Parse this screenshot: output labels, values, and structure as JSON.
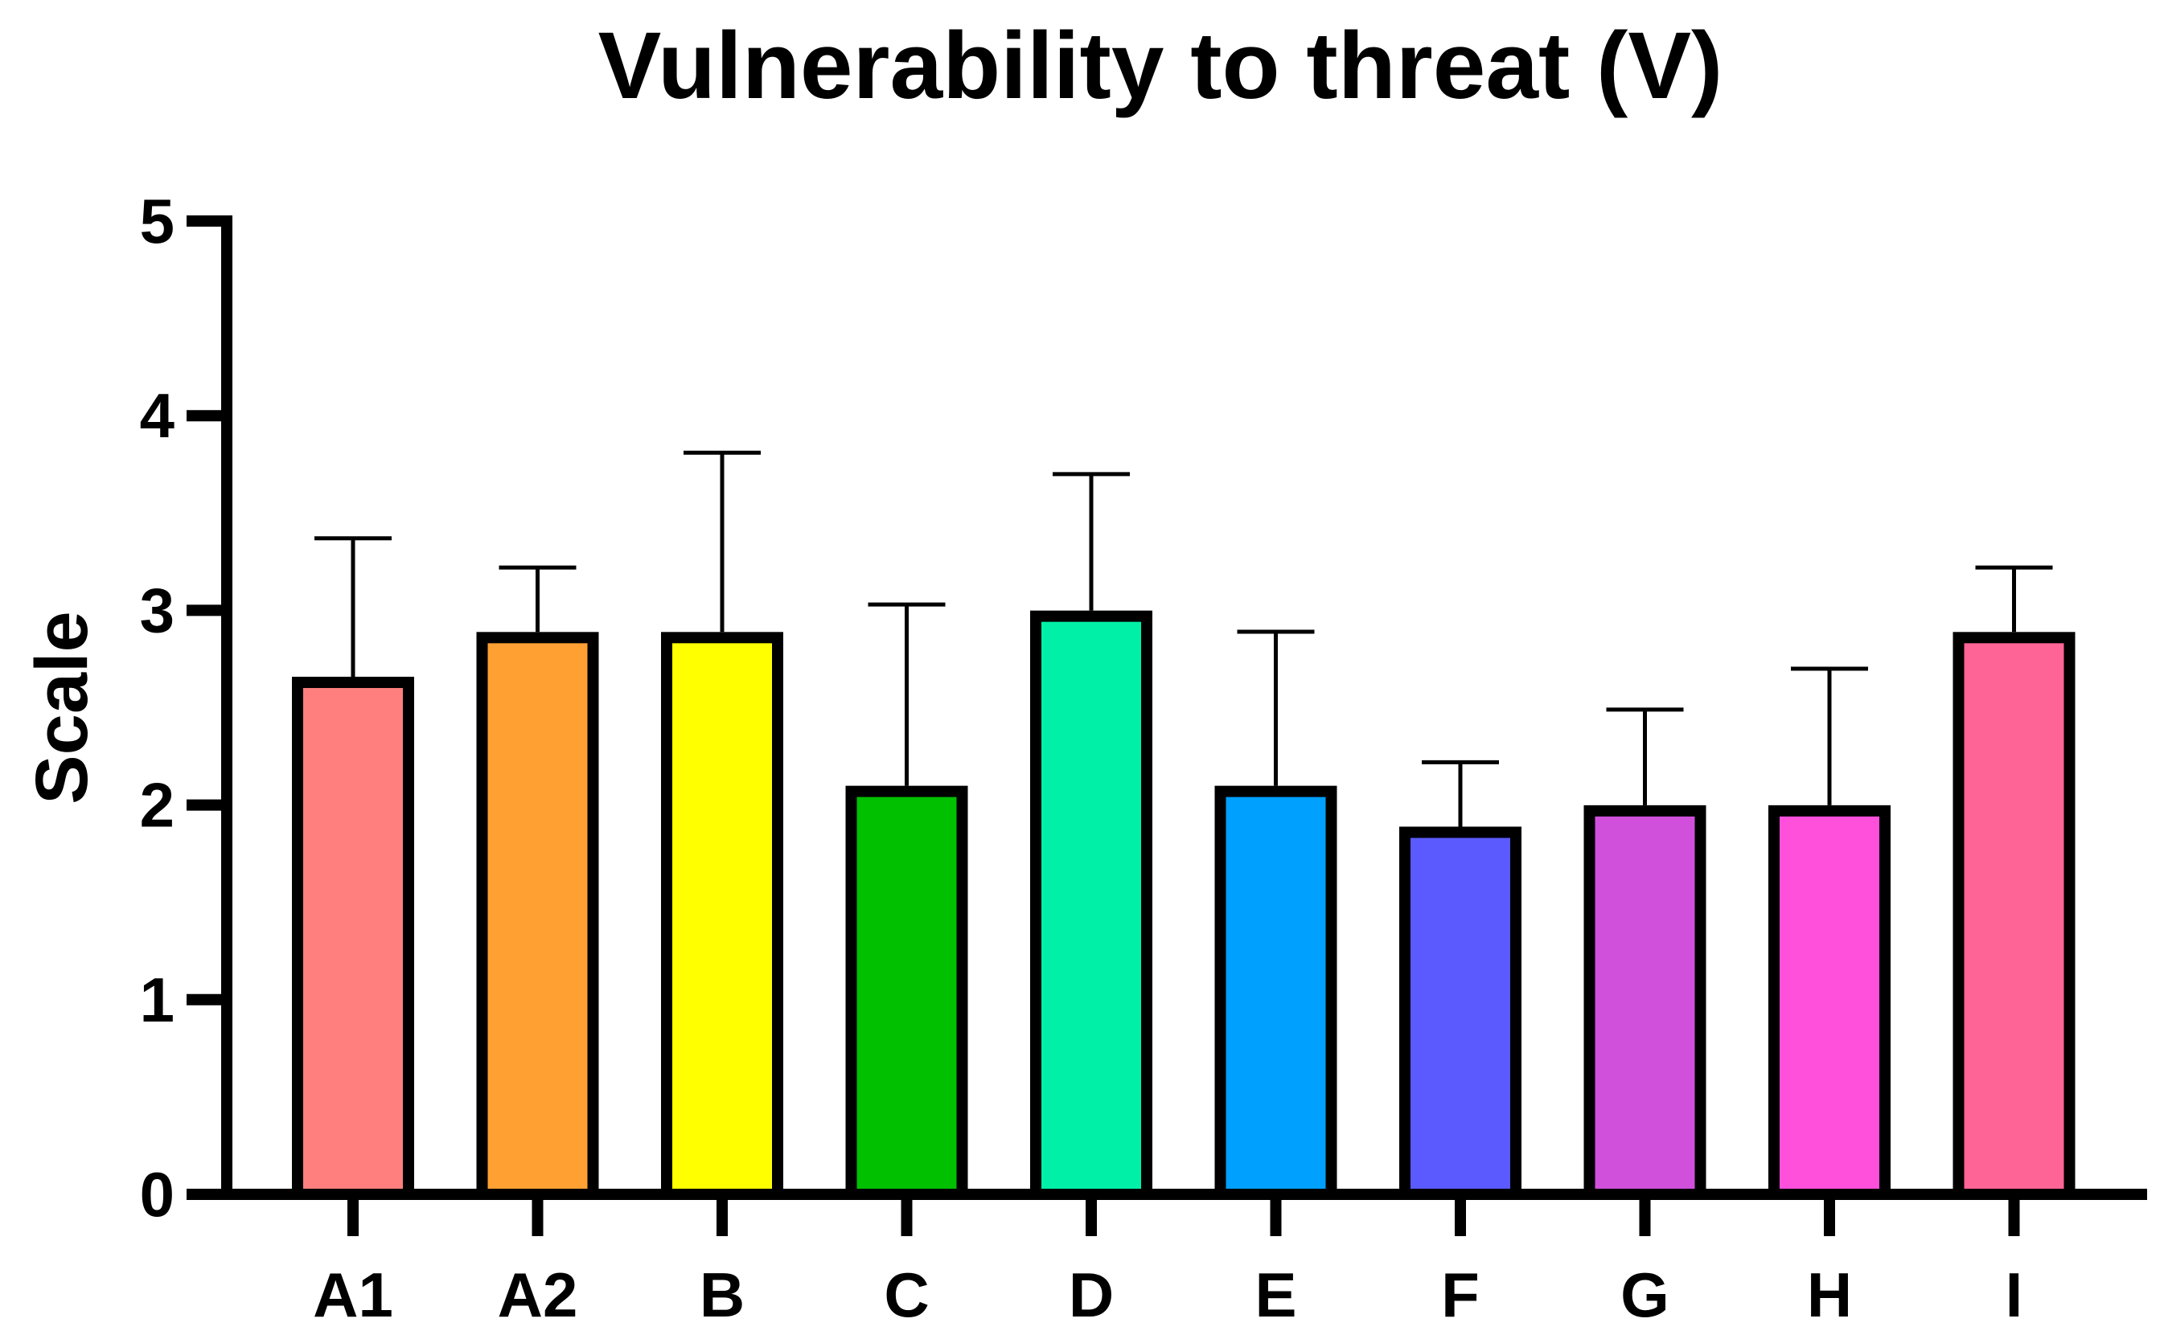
{
  "chart_data": {
    "type": "bar",
    "title": "Vulnerability to threat (V)",
    "xlabel": "",
    "ylabel": "Scale",
    "ylim": [
      0,
      5
    ],
    "yticks": [
      "0",
      "1",
      "2",
      "3",
      "4",
      "5"
    ],
    "categories": [
      "A1",
      "A2",
      "B",
      "C",
      "D",
      "E",
      "F",
      "G",
      "H",
      "I"
    ],
    "values": [
      2.63,
      2.86,
      2.86,
      2.07,
      2.97,
      2.07,
      1.86,
      1.97,
      1.97,
      2.86
    ],
    "error_upper": [
      3.37,
      3.22,
      3.81,
      3.03,
      3.7,
      2.89,
      2.22,
      2.49,
      2.7,
      3.22
    ],
    "colors": [
      "#FF7F7F",
      "#FFA033",
      "#FFFF00",
      "#00C000",
      "#00F0A8",
      "#00A0FF",
      "#5A5AFF",
      "#D050DC",
      "#FF50DC",
      "#FF6496"
    ],
    "grid": false,
    "legend": "none"
  }
}
